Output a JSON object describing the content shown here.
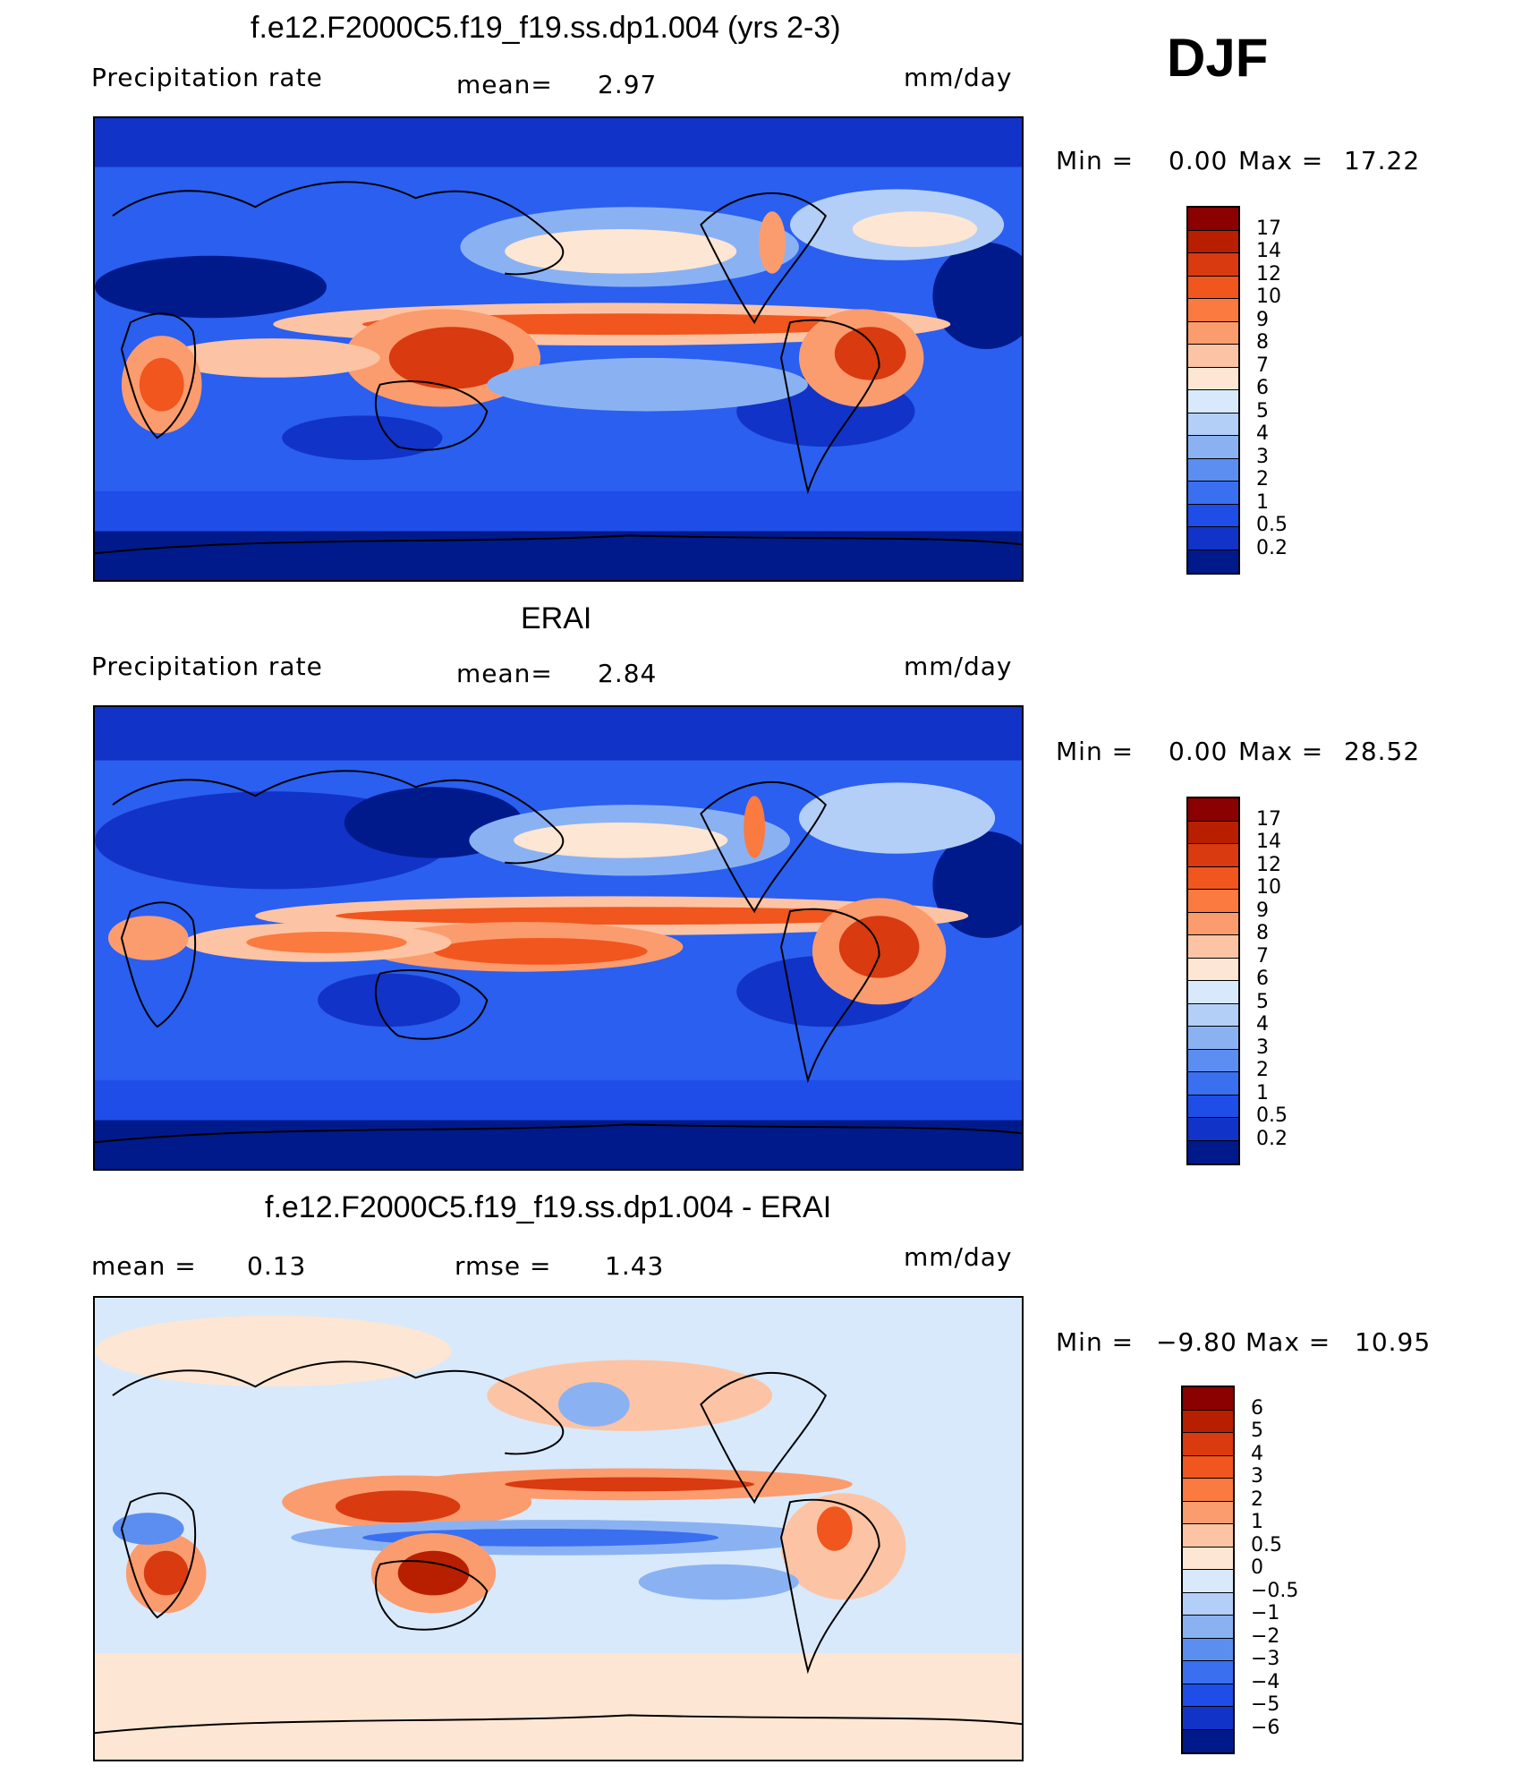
{
  "season": "DJF",
  "panels": [
    {
      "title": "f.e12.F2000C5.f19_f19.ss.dp1.004 (yrs 2-3)",
      "left_label": "Precipitation rate",
      "center_label": "mean=",
      "center_value": "2.97",
      "units": "mm/day",
      "min_label": "Min =",
      "min_value": "0.00",
      "max_label": "Max =",
      "max_value": "17.22"
    },
    {
      "title": "ERAI",
      "left_label": "Precipitation rate",
      "center_label": "mean=",
      "center_value": "2.84",
      "units": "mm/day",
      "min_label": "Min =",
      "min_value": "0.00",
      "max_label": "Max =",
      "max_value": "28.52"
    },
    {
      "title": "f.e12.F2000C5.f19_f19.ss.dp1.004 - ERAI",
      "left_label": "mean =",
      "left_value": "0.13",
      "center_label": "rmse =",
      "center_value": "1.43",
      "units": "mm/day",
      "min_label": "Min =",
      "min_value": "−9.80",
      "max_label": "Max =",
      "max_value": "10.95"
    }
  ],
  "colorbars": {
    "precip": {
      "levels": [
        "17",
        "14",
        "12",
        "10",
        "9",
        "8",
        "7",
        "6",
        "5",
        "4",
        "3",
        "2",
        "1",
        "0.5",
        "0.2"
      ],
      "colors": [
        "#8b0000",
        "#b81f00",
        "#d93a10",
        "#f0561e",
        "#fa7a40",
        "#fb9c6e",
        "#fcc4a4",
        "#fde6d3",
        "#d8e9fb",
        "#b3cff7",
        "#8ab2f3",
        "#5b8ef0",
        "#3a6ff0",
        "#1f4de8",
        "#1233c8",
        "#001a8c"
      ]
    },
    "diff": {
      "levels": [
        "6",
        "5",
        "4",
        "3",
        "2",
        "1",
        "0.5",
        "0",
        "−0.5",
        "−1",
        "−2",
        "−3",
        "−4",
        "−5",
        "−6"
      ],
      "colors": [
        "#8b0000",
        "#b81f00",
        "#d93a10",
        "#f0561e",
        "#fa7a40",
        "#fb9c6e",
        "#fcc4a4",
        "#fde6d3",
        "#d8e9fb",
        "#b3cff7",
        "#8ab2f3",
        "#5b8ef0",
        "#3a6ff0",
        "#1f4de8",
        "#1233c8",
        "#001a8c"
      ]
    }
  }
}
